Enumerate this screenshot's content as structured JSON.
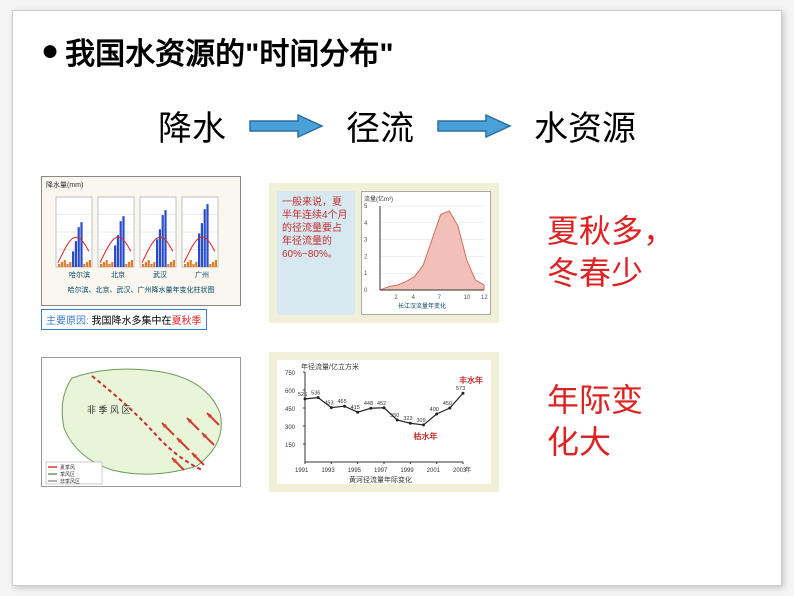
{
  "title": "我国水资源的\"时间分布\"",
  "flow": {
    "w1": "降水",
    "w2": "径流",
    "w3": "水资源",
    "arrow_color": "#4aa0d8",
    "arrow_stroke": "#2a6fa0"
  },
  "chart1": {
    "title": "哈尔滨、北京、武汉、广州降水量年变化柱状图",
    "bg": "#f9f7ef",
    "cities": [
      "哈尔滨",
      "北京",
      "武汉",
      "广州"
    ],
    "bars": {
      "colors_primary": "#e07b2a",
      "colors_secondary": "#2a4cc9",
      "border": "#888888",
      "y_max": 300
    },
    "caption_label": "主要原因:",
    "caption_black": " 我国降水多集中在",
    "caption_red": "夏秋季",
    "caption_border": "#3b7cc9"
  },
  "chart2": {
    "bg": "#f2efd8",
    "textbox_bg": "#d8e8f0",
    "textbox": "一般来说，夏半年连续4个月的径流量要占年径流量的60%~80%。",
    "curve": {
      "fill": "#f2c0b8",
      "stroke": "#d07060",
      "x_max": 12,
      "y_max": 5,
      "xticks": [
        2,
        4,
        7,
        10,
        12
      ],
      "points": [
        [
          1,
          0.2
        ],
        [
          2,
          0.3
        ],
        [
          3,
          0.5
        ],
        [
          4,
          0.8
        ],
        [
          5,
          1.5
        ],
        [
          6,
          3.0
        ],
        [
          7,
          4.5
        ],
        [
          8,
          4.7
        ],
        [
          9,
          3.8
        ],
        [
          10,
          1.8
        ],
        [
          11,
          0.6
        ],
        [
          12,
          0.3
        ]
      ]
    },
    "xlabel": "长江汉流量年变化",
    "ylabel": "流量(亿m³)"
  },
  "summary1": "夏秋多，\n冬春少",
  "chart3": {
    "bg": "#ffffff",
    "border": "#999999",
    "map": {
      "land_fill": "#e8f5d8",
      "monsoon_line": "#c23030",
      "wind_arrows": "#d04030"
    },
    "legend": [
      "夏季风",
      "季风区",
      "非季风区"
    ]
  },
  "chart4": {
    "bg": "#f2efd8",
    "ylabel": "年径流量/亿立方米",
    "y_max": 750,
    "y_ticks": [
      150,
      300,
      450,
      600,
      750
    ],
    "x_ticks": [
      1991,
      1993,
      1995,
      1997,
      1999,
      2001,
      2003
    ],
    "xlabel_suffix": "年",
    "caption": "黄河径流量年际变化",
    "label_high": "丰水年",
    "label_low": "枯水年",
    "label_color": "#c23030",
    "line_color": "#222222",
    "data": [
      [
        1991,
        526
      ],
      [
        1992,
        536
      ],
      [
        1993,
        453
      ],
      [
        1994,
        465
      ],
      [
        1995,
        415
      ],
      [
        1996,
        448
      ],
      [
        1997,
        452
      ],
      [
        1998,
        350
      ],
      [
        1999,
        323
      ],
      [
        2000,
        309
      ],
      [
        2001,
        400
      ],
      [
        2002,
        450
      ],
      [
        2003,
        573
      ]
    ]
  },
  "summary2": "年际变\n化大"
}
